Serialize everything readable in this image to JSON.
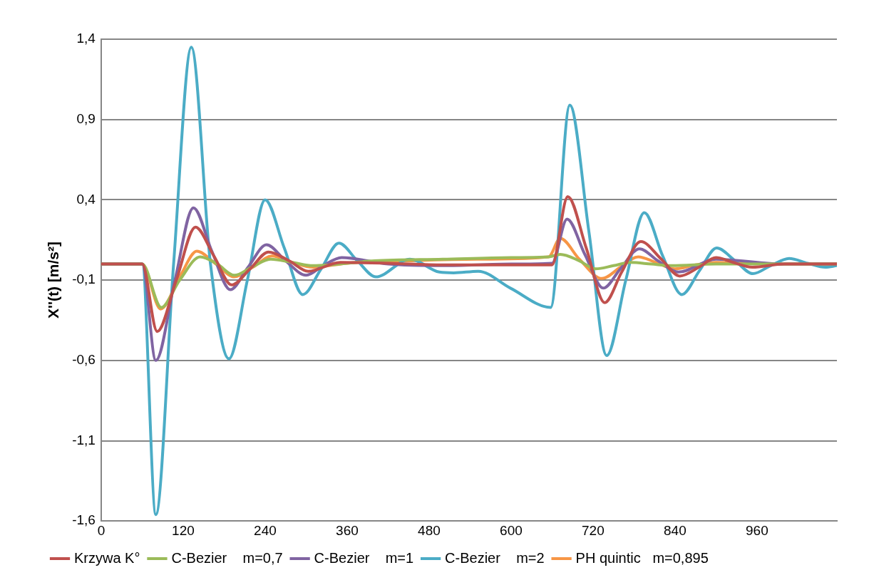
{
  "chart_data": {
    "type": "line",
    "ylabel": "X''(t) [m/s²]",
    "xlim": [
      0,
      1077
    ],
    "ylim": [
      -1.6,
      1.4
    ],
    "xticks": [
      0,
      120,
      240,
      360,
      480,
      600,
      720,
      840,
      960
    ],
    "yticks": [
      {
        "value": 1.4,
        "label": "1,4"
      },
      {
        "value": 0.9,
        "label": "0,9"
      },
      {
        "value": 0.4,
        "label": "0,4"
      },
      {
        "value": -0.1,
        "label": "-0,1"
      },
      {
        "value": -0.6,
        "label": "-0,6"
      },
      {
        "value": -1.1,
        "label": "-1,1"
      },
      {
        "value": -1.6,
        "label": "-1,6"
      }
    ],
    "grid": "y",
    "legend": "bottom",
    "marker": "none",
    "line_style": "solid",
    "series": [
      {
        "name": "Krzywa K°",
        "color": "#c0504d",
        "x": [
          0,
          60,
          82,
          110,
          138,
          165,
          191,
          218,
          245,
          275,
          303,
          350,
          420,
          500,
          600,
          660,
          683,
          710,
          737,
          762,
          790,
          820,
          847,
          875,
          900,
          925,
          953,
          1000,
          1077
        ],
        "values": [
          0,
          0,
          -0.42,
          -0.1,
          0.23,
          0.05,
          -0.13,
          -0.03,
          0.075,
          0.02,
          -0.045,
          0.01,
          0.005,
          -0.005,
          -0.005,
          -0.005,
          0.42,
          0.1,
          -0.24,
          -0.05,
          0.14,
          0.03,
          -0.075,
          -0.02,
          0.04,
          0.01,
          -0.02,
          0,
          0
        ]
      },
      {
        "name": "C-Bezier    m=0,7",
        "color": "#9bbb59",
        "x": [
          0,
          60,
          88,
          115,
          145,
          170,
          195,
          220,
          248,
          280,
          310,
          400,
          500,
          600,
          655,
          672,
          700,
          724,
          750,
          775,
          805,
          835,
          900,
          1000,
          1077
        ],
        "values": [
          0,
          0,
          -0.27,
          -0.1,
          0.045,
          0,
          -0.07,
          -0.02,
          0.03,
          0.01,
          -0.01,
          0.02,
          0.03,
          0.04,
          0.045,
          0.06,
          0.02,
          -0.03,
          -0.01,
          0.01,
          0,
          -0.01,
          0,
          0,
          0
        ]
      },
      {
        "name": "C-Bezier    m=1",
        "color": "#8064a2",
        "x": [
          0,
          60,
          80,
          108,
          135,
          162,
          189,
          215,
          242,
          270,
          300,
          325,
          352,
          420,
          500,
          600,
          660,
          682,
          708,
          735,
          760,
          788,
          815,
          845,
          900,
          1000,
          1077
        ],
        "values": [
          0,
          0,
          -0.6,
          -0.1,
          0.35,
          0.08,
          -0.16,
          -0.02,
          0.12,
          0.02,
          -0.07,
          -0.01,
          0.04,
          0,
          -0.01,
          0,
          0.005,
          0.28,
          0.06,
          -0.15,
          -0.03,
          0.095,
          0.02,
          -0.05,
          0.03,
          0,
          0
        ]
      },
      {
        "name": "C-Bezier    m=2",
        "color": "#4bacc6",
        "x": [
          0,
          60,
          80,
          106,
          132,
          160,
          187,
          214,
          240,
          268,
          295,
          322,
          348,
          375,
          402,
          452,
          495,
          516,
          552,
          599,
          658,
          686,
          714,
          740,
          768,
          795,
          822,
          850,
          876,
          901,
          928,
          954,
          980,
          1007,
          1034,
          1060,
          1077
        ],
        "values": [
          0,
          0,
          -1.56,
          0,
          1.35,
          0,
          -0.59,
          -0.1,
          0.4,
          0.1,
          -0.19,
          -0.03,
          0.13,
          0.02,
          -0.08,
          0.03,
          -0.05,
          -0.055,
          -0.045,
          -0.15,
          -0.27,
          0.99,
          0.2,
          -0.57,
          -0.1,
          0.32,
          0.05,
          -0.19,
          -0.04,
          0.1,
          0.02,
          -0.06,
          -0.01,
          0.035,
          0.005,
          -0.02,
          -0.01
        ]
      },
      {
        "name": "PH quintic   m=0,895",
        "color": "#f79646",
        "x": [
          0,
          60,
          87,
          115,
          140,
          168,
          195,
          222,
          250,
          280,
          310,
          360,
          450,
          550,
          655,
          672,
          700,
          733,
          760,
          786,
          812,
          840,
          870,
          900,
          1000,
          1077
        ],
        "values": [
          0,
          0,
          -0.28,
          -0.08,
          0.08,
          0,
          -0.08,
          -0.02,
          0.05,
          0.01,
          -0.02,
          0.005,
          0.02,
          0.03,
          0.045,
          0.16,
          0.03,
          -0.09,
          -0.02,
          0.045,
          0.01,
          -0.03,
          -0.005,
          0.01,
          0,
          0
        ]
      }
    ]
  }
}
